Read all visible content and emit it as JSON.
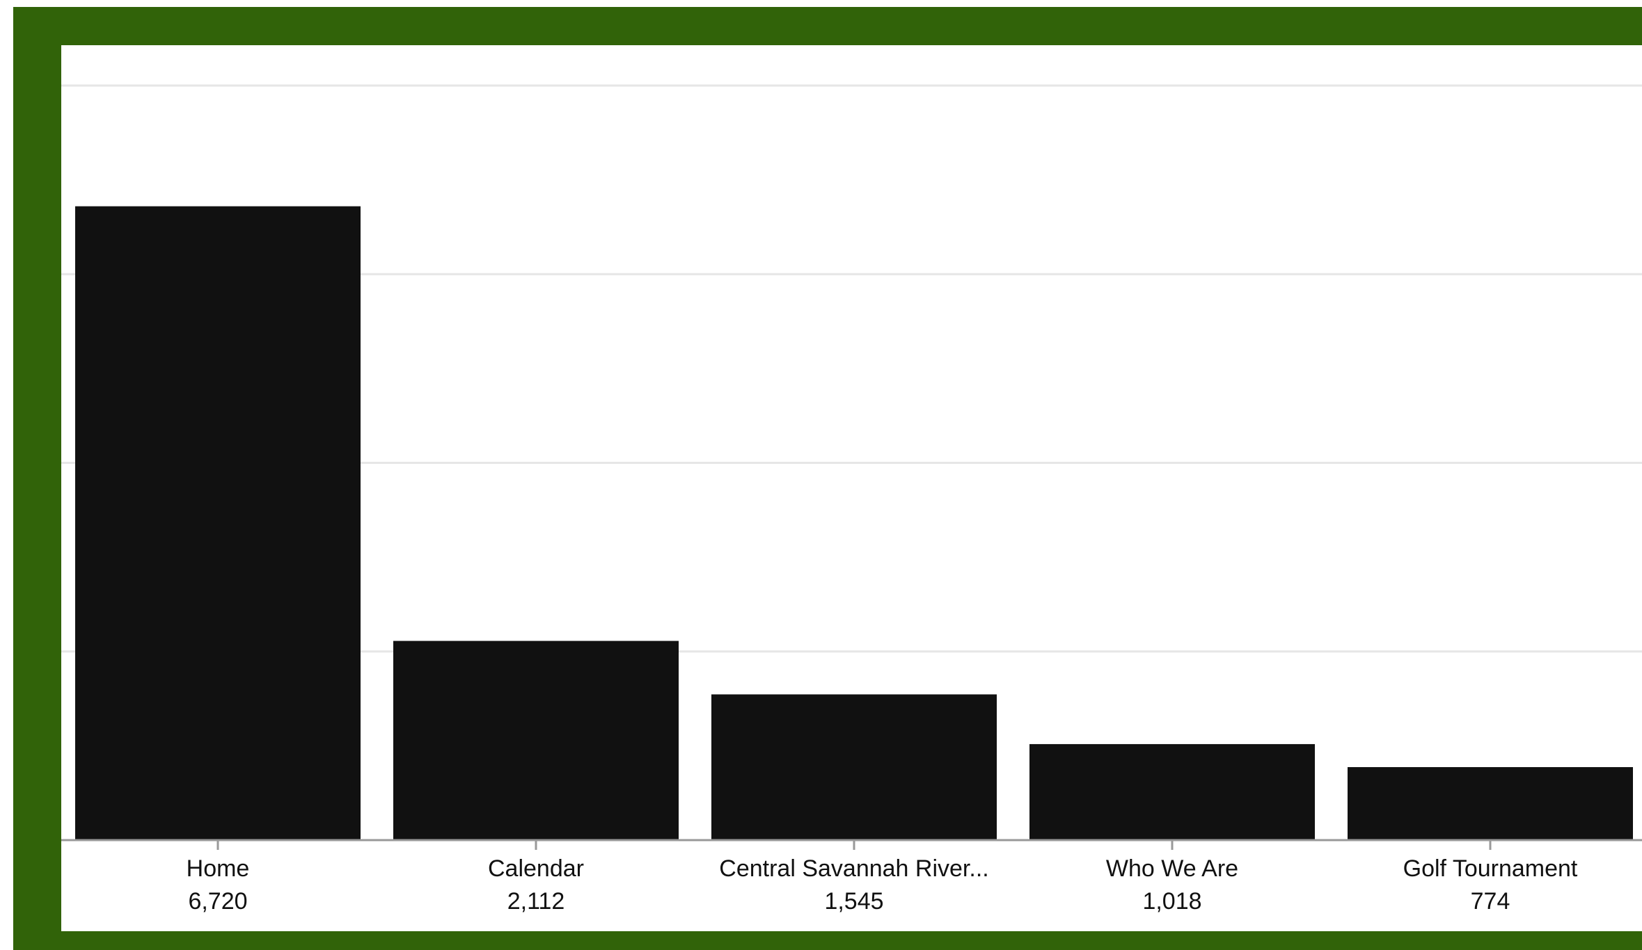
{
  "colors": {
    "frame": "#316309",
    "panel": "#ffffff",
    "bar": "#111111",
    "grid": "#e6e6e6",
    "axis": "#999999"
  },
  "chart_data": {
    "type": "bar",
    "categories": [
      "Home",
      "Calendar",
      "Central Savannah River...",
      "Who We Are",
      "Golf Tournament"
    ],
    "values": [
      6720,
      2112,
      1545,
      1018,
      774
    ],
    "value_labels": [
      "6,720",
      "2,112",
      "1,545",
      "1,018",
      "774"
    ],
    "title": "",
    "xlabel": "",
    "ylabel": "",
    "ylim": [
      0,
      8000
    ],
    "gridlines": [
      2000,
      4000,
      6000,
      8000
    ],
    "grid": true,
    "legend": "none"
  }
}
